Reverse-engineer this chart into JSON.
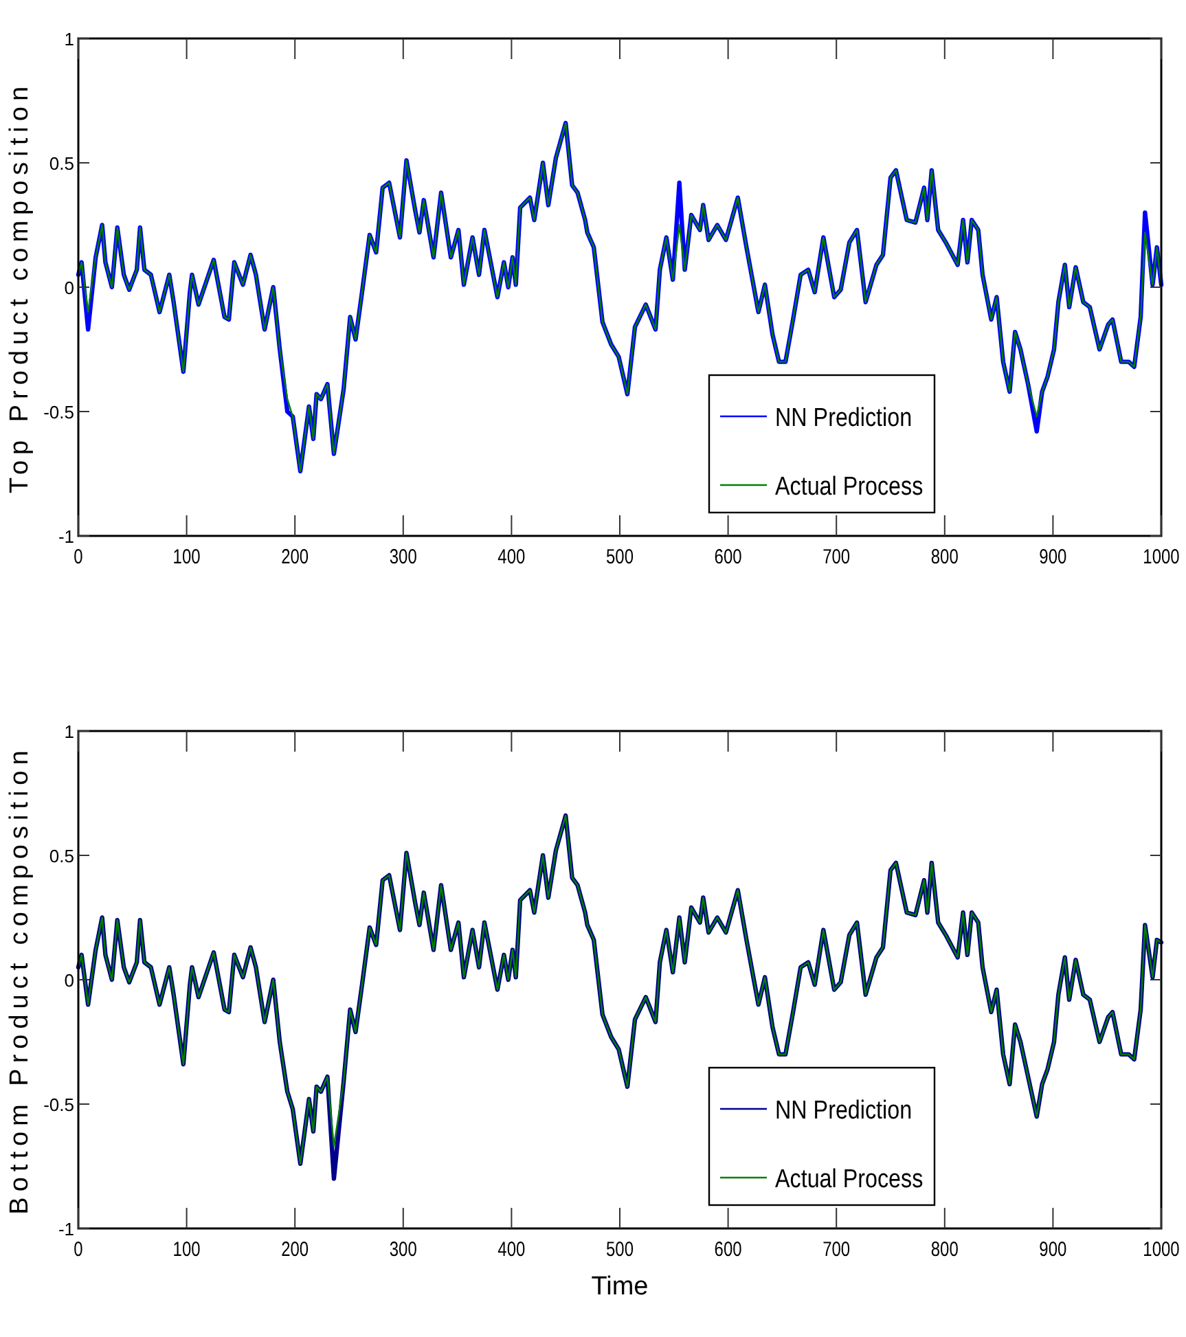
{
  "chart_data": [
    {
      "type": "line",
      "ylabel": "Top Product composition",
      "xlim": [
        0,
        1000
      ],
      "xticks": [
        0,
        100,
        200,
        300,
        400,
        500,
        600,
        700,
        800,
        900,
        1000
      ],
      "ylim": [
        -1,
        1
      ],
      "yticks": [
        -1,
        -0.5,
        0,
        0.5,
        1
      ],
      "legend": "bottom right",
      "grid": false,
      "line_style": "solid",
      "x": [
        0,
        3,
        9,
        16,
        22,
        25,
        31,
        36,
        42,
        47,
        54,
        57,
        61,
        67,
        75,
        84,
        88,
        97,
        103,
        105,
        111,
        125,
        135,
        139,
        144,
        152,
        159,
        164,
        172,
        180,
        186,
        193,
        198,
        205,
        213,
        217,
        220,
        224,
        230,
        236,
        245,
        251,
        256,
        262,
        269,
        275,
        281,
        287,
        297,
        303,
        311,
        315,
        319,
        328,
        335,
        344,
        351,
        356,
        364,
        370,
        375,
        387,
        393,
        397,
        401,
        404,
        408,
        417,
        421,
        429,
        434,
        441,
        450,
        456,
        461,
        468,
        470,
        476,
        484,
        492,
        499,
        507,
        514,
        524,
        533,
        537,
        543,
        549,
        555,
        560,
        566,
        574,
        577,
        582,
        590,
        598,
        609,
        617,
        628,
        634,
        641,
        647,
        653,
        660,
        667,
        674,
        680,
        688,
        698,
        704,
        712,
        719,
        727,
        737,
        743,
        750,
        755,
        765,
        773,
        781,
        784,
        788,
        794,
        801,
        812,
        817,
        821,
        825,
        831,
        835,
        843,
        848,
        854,
        860,
        865,
        870,
        877,
        885,
        890,
        895,
        901,
        905,
        911,
        915,
        921,
        928,
        934,
        943,
        951,
        955,
        963,
        970,
        975,
        981,
        985,
        992,
        996,
        1000
      ],
      "series": [
        {
          "name": "NN Prediction",
          "color": "#0000ff",
          "values": [
            0.05,
            0.1,
            -0.17,
            0.12,
            0.25,
            0.1,
            0,
            0.24,
            0.05,
            -0.01,
            0.07,
            0.24,
            0.07,
            0.05,
            -0.1,
            0.05,
            -0.06,
            -0.34,
            -0.02,
            0.05,
            -0.07,
            0.11,
            -0.12,
            -0.13,
            0.1,
            0.01,
            0.13,
            0.05,
            -0.17,
            0,
            -0.25,
            -0.5,
            -0.52,
            -0.74,
            -0.48,
            -0.61,
            -0.43,
            -0.45,
            -0.39,
            -0.67,
            -0.41,
            -0.12,
            -0.21,
            -0.02,
            0.21,
            0.14,
            0.4,
            0.42,
            0.2,
            0.51,
            0.31,
            0.22,
            0.35,
            0.12,
            0.38,
            0.12,
            0.23,
            0.01,
            0.2,
            0.05,
            0.23,
            -0.04,
            0.1,
            0,
            0.12,
            0.01,
            0.32,
            0.36,
            0.27,
            0.5,
            0.33,
            0.52,
            0.66,
            0.41,
            0.38,
            0.27,
            0.22,
            0.16,
            -0.14,
            -0.23,
            -0.28,
            -0.43,
            -0.16,
            -0.07,
            -0.17,
            0.07,
            0.2,
            0.03,
            0.42,
            0.07,
            0.29,
            0.23,
            0.33,
            0.19,
            0.25,
            0.19,
            0.36,
            0.16,
            -0.1,
            0.01,
            -0.19,
            -0.3,
            -0.3,
            -0.13,
            0.05,
            0.07,
            -0.02,
            0.2,
            -0.04,
            -0.01,
            0.18,
            0.23,
            -0.06,
            0.09,
            0.13,
            0.44,
            0.47,
            0.27,
            0.26,
            0.4,
            0.27,
            0.47,
            0.23,
            0.18,
            0.09,
            0.27,
            0.1,
            0.27,
            0.23,
            0.05,
            -0.13,
            -0.04,
            -0.3,
            -0.42,
            -0.18,
            -0.25,
            -0.39,
            -0.58,
            -0.42,
            -0.36,
            -0.25,
            -0.06,
            0.09,
            -0.08,
            0.08,
            -0.06,
            -0.08,
            -0.25,
            -0.15,
            -0.13,
            -0.3,
            -0.3,
            -0.32,
            -0.12,
            0.3,
            0.01,
            0.16,
            0.01
          ]
        },
        {
          "name": "Actual Process",
          "color": "#008000",
          "values": [
            0.05,
            0.1,
            -0.1,
            0.12,
            0.25,
            0.1,
            0,
            0.24,
            0.05,
            -0.01,
            0.07,
            0.24,
            0.07,
            0.05,
            -0.1,
            0.05,
            -0.06,
            -0.34,
            -0.02,
            0.05,
            -0.07,
            0.11,
            -0.12,
            -0.13,
            0.1,
            0.01,
            0.13,
            0.05,
            -0.17,
            0,
            -0.25,
            -0.45,
            -0.52,
            -0.74,
            -0.48,
            -0.61,
            -0.43,
            -0.45,
            -0.39,
            -0.67,
            -0.41,
            -0.12,
            -0.21,
            -0.02,
            0.21,
            0.14,
            0.4,
            0.42,
            0.2,
            0.51,
            0.31,
            0.22,
            0.35,
            0.12,
            0.38,
            0.12,
            0.23,
            0.01,
            0.2,
            0.05,
            0.23,
            -0.04,
            0.1,
            0,
            0.12,
            0.01,
            0.32,
            0.36,
            0.27,
            0.5,
            0.33,
            0.52,
            0.66,
            0.41,
            0.38,
            0.27,
            0.22,
            0.16,
            -0.14,
            -0.23,
            -0.28,
            -0.43,
            -0.16,
            -0.07,
            -0.17,
            0.07,
            0.2,
            0.03,
            0.25,
            0.07,
            0.29,
            0.23,
            0.33,
            0.19,
            0.25,
            0.19,
            0.36,
            0.16,
            -0.1,
            0.01,
            -0.19,
            -0.3,
            -0.3,
            -0.13,
            0.05,
            0.07,
            -0.02,
            0.2,
            -0.04,
            -0.01,
            0.18,
            0.23,
            -0.06,
            0.09,
            0.13,
            0.44,
            0.47,
            0.27,
            0.26,
            0.4,
            0.27,
            0.47,
            0.23,
            0.18,
            0.09,
            0.27,
            0.1,
            0.27,
            0.23,
            0.05,
            -0.13,
            -0.04,
            -0.3,
            -0.42,
            -0.18,
            -0.25,
            -0.39,
            -0.52,
            -0.42,
            -0.36,
            -0.25,
            -0.06,
            0.09,
            -0.08,
            0.08,
            -0.06,
            -0.08,
            -0.25,
            -0.15,
            -0.13,
            -0.3,
            -0.3,
            -0.32,
            -0.12,
            0.22,
            0.01,
            0.16,
            0.01
          ]
        }
      ]
    },
    {
      "type": "line",
      "xlabel": "Time",
      "ylabel": "Bottom Product composition",
      "xlim": [
        0,
        1000
      ],
      "xticks": [
        0,
        100,
        200,
        300,
        400,
        500,
        600,
        700,
        800,
        900,
        1000
      ],
      "ylim": [
        -1,
        1
      ],
      "yticks": [
        -1,
        -0.5,
        0,
        0.5,
        1
      ],
      "legend": "bottom right",
      "grid": false,
      "line_style": "solid",
      "x": [
        0,
        3,
        9,
        16,
        22,
        25,
        31,
        36,
        42,
        47,
        54,
        57,
        61,
        67,
        75,
        84,
        88,
        97,
        103,
        105,
        111,
        125,
        135,
        139,
        144,
        152,
        159,
        164,
        172,
        180,
        186,
        193,
        198,
        205,
        213,
        217,
        220,
        224,
        230,
        236,
        245,
        251,
        256,
        262,
        269,
        275,
        281,
        287,
        297,
        303,
        311,
        315,
        319,
        328,
        335,
        344,
        351,
        356,
        364,
        370,
        375,
        387,
        393,
        397,
        401,
        404,
        408,
        417,
        421,
        429,
        434,
        441,
        450,
        456,
        461,
        468,
        470,
        476,
        484,
        492,
        499,
        507,
        514,
        524,
        533,
        537,
        543,
        549,
        555,
        560,
        566,
        574,
        577,
        582,
        590,
        598,
        609,
        617,
        628,
        634,
        641,
        647,
        653,
        660,
        667,
        674,
        680,
        688,
        698,
        704,
        712,
        719,
        727,
        737,
        743,
        750,
        755,
        765,
        773,
        781,
        784,
        788,
        794,
        801,
        812,
        817,
        821,
        825,
        831,
        835,
        843,
        848,
        854,
        860,
        865,
        870,
        877,
        885,
        890,
        895,
        901,
        905,
        911,
        915,
        921,
        928,
        934,
        943,
        951,
        955,
        963,
        970,
        975,
        981,
        985,
        992,
        996,
        1000
      ],
      "series": [
        {
          "name": "NN Prediction",
          "color": "#00008b",
          "values": [
            0.05,
            0.1,
            -0.1,
            0.12,
            0.25,
            0.1,
            0,
            0.24,
            0.05,
            -0.01,
            0.07,
            0.24,
            0.07,
            0.05,
            -0.1,
            0.05,
            -0.06,
            -0.34,
            -0.02,
            0.05,
            -0.07,
            0.11,
            -0.12,
            -0.13,
            0.1,
            0.01,
            0.13,
            0.05,
            -0.17,
            0,
            -0.25,
            -0.45,
            -0.52,
            -0.74,
            -0.48,
            -0.61,
            -0.43,
            -0.45,
            -0.39,
            -0.8,
            -0.41,
            -0.12,
            -0.21,
            -0.02,
            0.21,
            0.14,
            0.4,
            0.42,
            0.2,
            0.51,
            0.31,
            0.22,
            0.35,
            0.12,
            0.38,
            0.12,
            0.23,
            0.01,
            0.2,
            0.05,
            0.23,
            -0.04,
            0.1,
            0,
            0.12,
            0.01,
            0.32,
            0.36,
            0.27,
            0.5,
            0.33,
            0.52,
            0.66,
            0.41,
            0.38,
            0.27,
            0.22,
            0.16,
            -0.14,
            -0.23,
            -0.28,
            -0.43,
            -0.16,
            -0.07,
            -0.17,
            0.07,
            0.2,
            0.03,
            0.25,
            0.07,
            0.29,
            0.23,
            0.33,
            0.19,
            0.25,
            0.19,
            0.36,
            0.16,
            -0.1,
            0.01,
            -0.19,
            -0.3,
            -0.3,
            -0.13,
            0.05,
            0.07,
            -0.02,
            0.2,
            -0.04,
            -0.01,
            0.18,
            0.23,
            -0.06,
            0.09,
            0.13,
            0.44,
            0.47,
            0.27,
            0.26,
            0.4,
            0.27,
            0.47,
            0.23,
            0.18,
            0.09,
            0.27,
            0.1,
            0.27,
            0.23,
            0.05,
            -0.13,
            -0.04,
            -0.3,
            -0.42,
            -0.18,
            -0.25,
            -0.39,
            -0.55,
            -0.42,
            -0.36,
            -0.25,
            -0.06,
            0.09,
            -0.08,
            0.08,
            -0.06,
            -0.08,
            -0.25,
            -0.15,
            -0.13,
            -0.3,
            -0.3,
            -0.32,
            -0.12,
            0.22,
            0.01,
            0.16,
            0.15
          ]
        },
        {
          "name": "Actual Process",
          "color": "#008000",
          "values": [
            0.05,
            0.1,
            -0.1,
            0.12,
            0.25,
            0.1,
            0,
            0.24,
            0.05,
            -0.01,
            0.07,
            0.24,
            0.07,
            0.05,
            -0.1,
            0.05,
            -0.06,
            -0.34,
            -0.02,
            0.05,
            -0.07,
            0.11,
            -0.12,
            -0.13,
            0.1,
            0.01,
            0.13,
            0.05,
            -0.17,
            0,
            -0.25,
            -0.45,
            -0.52,
            -0.74,
            -0.48,
            -0.61,
            -0.43,
            -0.45,
            -0.39,
            -0.67,
            -0.41,
            -0.12,
            -0.21,
            -0.02,
            0.21,
            0.14,
            0.4,
            0.42,
            0.2,
            0.51,
            0.31,
            0.22,
            0.35,
            0.12,
            0.38,
            0.12,
            0.23,
            0.01,
            0.2,
            0.05,
            0.23,
            -0.04,
            0.1,
            0,
            0.12,
            0.01,
            0.32,
            0.36,
            0.27,
            0.5,
            0.33,
            0.52,
            0.66,
            0.41,
            0.38,
            0.27,
            0.22,
            0.16,
            -0.14,
            -0.23,
            -0.28,
            -0.43,
            -0.16,
            -0.07,
            -0.17,
            0.07,
            0.2,
            0.03,
            0.25,
            0.07,
            0.29,
            0.23,
            0.33,
            0.19,
            0.25,
            0.19,
            0.36,
            0.16,
            -0.1,
            0.01,
            -0.19,
            -0.3,
            -0.3,
            -0.13,
            0.05,
            0.07,
            -0.02,
            0.2,
            -0.04,
            -0.01,
            0.18,
            0.23,
            -0.06,
            0.09,
            0.13,
            0.44,
            0.47,
            0.27,
            0.26,
            0.4,
            0.27,
            0.47,
            0.23,
            0.18,
            0.09,
            0.27,
            0.1,
            0.27,
            0.23,
            0.05,
            -0.13,
            -0.04,
            -0.3,
            -0.42,
            -0.18,
            -0.25,
            -0.39,
            -0.55,
            -0.42,
            -0.36,
            -0.25,
            -0.06,
            0.09,
            -0.08,
            0.08,
            -0.06,
            -0.08,
            -0.25,
            -0.15,
            -0.13,
            -0.3,
            -0.3,
            -0.32,
            -0.12,
            0.22,
            0.01,
            0.16,
            0.15
          ]
        }
      ]
    }
  ]
}
